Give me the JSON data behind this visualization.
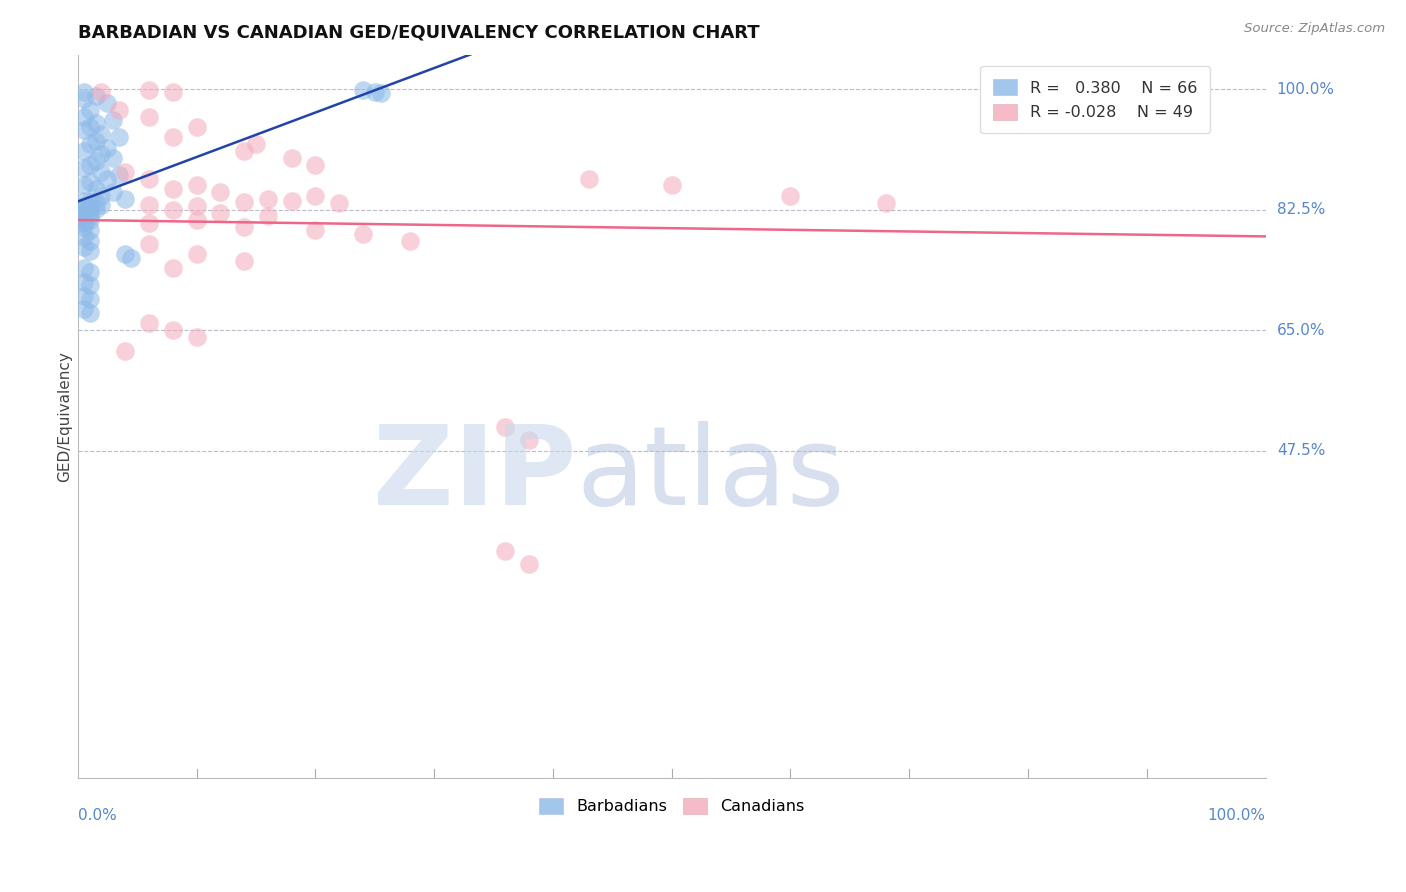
{
  "title": "BARBADIAN VS CANADIAN GED/EQUIVALENCY CORRELATION CHART",
  "source": "Source: ZipAtlas.com",
  "ylabel": "GED/Equivalency",
  "r_blue": 0.38,
  "n_blue": 66,
  "r_pink": -0.028,
  "n_pink": 49,
  "blue_color": "#8BB8E8",
  "pink_color": "#F4AABB",
  "trendline_blue_color": "#2244AA",
  "trendline_pink_color": "#EE6688",
  "ytick_vals": [
    1.0,
    0.825,
    0.65,
    0.475
  ],
  "ytick_labels": [
    "100.0%",
    "82.5%",
    "65.0%",
    "47.5%"
  ],
  "blue_points": [
    [
      0.005,
      0.995
    ],
    [
      0.015,
      0.99
    ],
    [
      0.005,
      0.985
    ],
    [
      0.025,
      0.98
    ],
    [
      0.01,
      0.97
    ],
    [
      0.005,
      0.96
    ],
    [
      0.03,
      0.955
    ],
    [
      0.015,
      0.95
    ],
    [
      0.01,
      0.945
    ],
    [
      0.005,
      0.94
    ],
    [
      0.02,
      0.935
    ],
    [
      0.035,
      0.93
    ],
    [
      0.015,
      0.925
    ],
    [
      0.01,
      0.92
    ],
    [
      0.025,
      0.915
    ],
    [
      0.005,
      0.91
    ],
    [
      0.02,
      0.905
    ],
    [
      0.03,
      0.9
    ],
    [
      0.015,
      0.895
    ],
    [
      0.01,
      0.89
    ],
    [
      0.005,
      0.885
    ],
    [
      0.02,
      0.88
    ],
    [
      0.035,
      0.875
    ],
    [
      0.025,
      0.87
    ],
    [
      0.01,
      0.865
    ],
    [
      0.005,
      0.86
    ],
    [
      0.015,
      0.855
    ],
    [
      0.03,
      0.85
    ],
    [
      0.02,
      0.845
    ],
    [
      0.04,
      0.84
    ],
    [
      0.005,
      0.838
    ],
    [
      0.01,
      0.836
    ],
    [
      0.015,
      0.834
    ],
    [
      0.02,
      0.832
    ],
    [
      0.005,
      0.83
    ],
    [
      0.01,
      0.828
    ],
    [
      0.015,
      0.826
    ],
    [
      0.005,
      0.824
    ],
    [
      0.01,
      0.822
    ],
    [
      0.005,
      0.82
    ],
    [
      0.005,
      0.818
    ],
    [
      0.01,
      0.816
    ],
    [
      0.005,
      0.814
    ],
    [
      0.005,
      0.812
    ],
    [
      0.01,
      0.81
    ],
    [
      0.005,
      0.808
    ],
    [
      0.005,
      0.806
    ],
    [
      0.005,
      0.8
    ],
    [
      0.01,
      0.795
    ],
    [
      0.005,
      0.785
    ],
    [
      0.01,
      0.78
    ],
    [
      0.005,
      0.77
    ],
    [
      0.01,
      0.765
    ],
    [
      0.04,
      0.76
    ],
    [
      0.045,
      0.755
    ],
    [
      0.005,
      0.74
    ],
    [
      0.01,
      0.735
    ],
    [
      0.005,
      0.72
    ],
    [
      0.01,
      0.715
    ],
    [
      0.24,
      0.998
    ],
    [
      0.25,
      0.996
    ],
    [
      0.255,
      0.994
    ],
    [
      0.005,
      0.7
    ],
    [
      0.01,
      0.695
    ],
    [
      0.005,
      0.68
    ],
    [
      0.01,
      0.675
    ]
  ],
  "pink_points": [
    [
      0.02,
      0.995
    ],
    [
      0.06,
      0.998
    ],
    [
      0.08,
      0.996
    ],
    [
      0.035,
      0.97
    ],
    [
      0.06,
      0.96
    ],
    [
      0.1,
      0.945
    ],
    [
      0.08,
      0.93
    ],
    [
      0.15,
      0.92
    ],
    [
      0.14,
      0.91
    ],
    [
      0.18,
      0.9
    ],
    [
      0.2,
      0.89
    ],
    [
      0.04,
      0.88
    ],
    [
      0.06,
      0.87
    ],
    [
      0.1,
      0.86
    ],
    [
      0.08,
      0.855
    ],
    [
      0.12,
      0.85
    ],
    [
      0.2,
      0.845
    ],
    [
      0.16,
      0.84
    ],
    [
      0.18,
      0.838
    ],
    [
      0.14,
      0.836
    ],
    [
      0.22,
      0.834
    ],
    [
      0.06,
      0.832
    ],
    [
      0.1,
      0.83
    ],
    [
      0.43,
      0.87
    ],
    [
      0.5,
      0.86
    ],
    [
      0.08,
      0.825
    ],
    [
      0.12,
      0.82
    ],
    [
      0.16,
      0.815
    ],
    [
      0.1,
      0.81
    ],
    [
      0.06,
      0.805
    ],
    [
      0.14,
      0.8
    ],
    [
      0.2,
      0.795
    ],
    [
      0.24,
      0.79
    ],
    [
      0.28,
      0.78
    ],
    [
      0.06,
      0.775
    ],
    [
      0.1,
      0.76
    ],
    [
      0.14,
      0.75
    ],
    [
      0.08,
      0.74
    ],
    [
      0.06,
      0.66
    ],
    [
      0.08,
      0.65
    ],
    [
      0.1,
      0.64
    ],
    [
      0.04,
      0.62
    ],
    [
      0.36,
      0.51
    ],
    [
      0.38,
      0.49
    ],
    [
      0.36,
      0.33
    ],
    [
      0.38,
      0.31
    ],
    [
      0.85,
      0.998
    ],
    [
      0.6,
      0.845
    ],
    [
      0.68,
      0.835
    ]
  ]
}
